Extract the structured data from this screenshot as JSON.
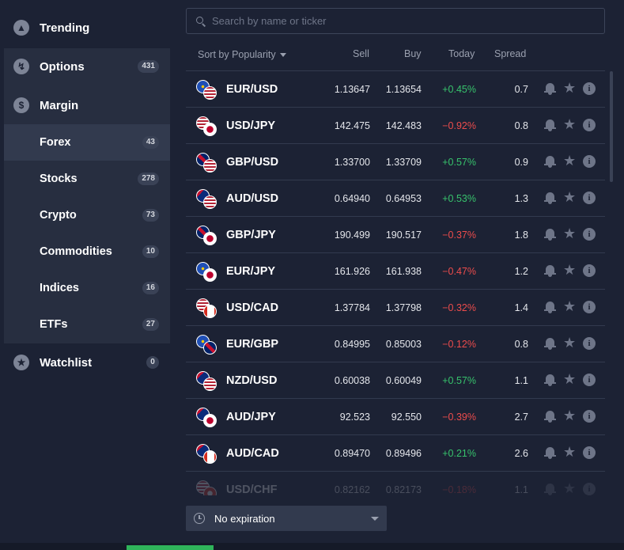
{
  "sidebar": {
    "trending": {
      "label": "Trending"
    },
    "options": {
      "label": "Options",
      "count": "431"
    },
    "margin": {
      "label": "Margin"
    },
    "categories": [
      {
        "label": "Forex",
        "count": "43"
      },
      {
        "label": "Stocks",
        "count": "278"
      },
      {
        "label": "Crypto",
        "count": "73"
      },
      {
        "label": "Commodities",
        "count": "10"
      },
      {
        "label": "Indices",
        "count": "16"
      },
      {
        "label": "ETFs",
        "count": "27"
      }
    ],
    "watchlist": {
      "label": "Watchlist",
      "count": "0"
    }
  },
  "search": {
    "placeholder": "Search by name or ticker"
  },
  "table": {
    "sort_label": "Sort by Popularity",
    "columns": {
      "sell": "Sell",
      "buy": "Buy",
      "today": "Today",
      "spread": "Spread"
    },
    "rows": [
      {
        "pair": "EUR/USD",
        "sell": "1.13647",
        "buy": "1.13654",
        "today": "+0.45%",
        "spread": "0.7"
      },
      {
        "pair": "USD/JPY",
        "sell": "142.475",
        "buy": "142.483",
        "today": "−0.92%",
        "spread": "0.8"
      },
      {
        "pair": "GBP/USD",
        "sell": "1.33700",
        "buy": "1.33709",
        "today": "+0.57%",
        "spread": "0.9"
      },
      {
        "pair": "AUD/USD",
        "sell": "0.64940",
        "buy": "0.64953",
        "today": "+0.53%",
        "spread": "1.3"
      },
      {
        "pair": "GBP/JPY",
        "sell": "190.499",
        "buy": "190.517",
        "today": "−0.37%",
        "spread": "1.8"
      },
      {
        "pair": "EUR/JPY",
        "sell": "161.926",
        "buy": "161.938",
        "today": "−0.47%",
        "spread": "1.2"
      },
      {
        "pair": "USD/CAD",
        "sell": "1.37784",
        "buy": "1.37798",
        "today": "−0.32%",
        "spread": "1.4"
      },
      {
        "pair": "EUR/GBP",
        "sell": "0.84995",
        "buy": "0.85003",
        "today": "−0.12%",
        "spread": "0.8"
      },
      {
        "pair": "NZD/USD",
        "sell": "0.60038",
        "buy": "0.60049",
        "today": "+0.57%",
        "spread": "1.1"
      },
      {
        "pair": "AUD/JPY",
        "sell": "92.523",
        "buy": "92.550",
        "today": "−0.39%",
        "spread": "2.7"
      },
      {
        "pair": "AUD/CAD",
        "sell": "0.89470",
        "buy": "0.89496",
        "today": "+0.21%",
        "spread": "2.6"
      },
      {
        "pair": "USD/CHF",
        "sell": "0.82162",
        "buy": "0.82173",
        "today": "−0.18%",
        "spread": "1.1"
      }
    ]
  },
  "expiration": {
    "label": "No expiration"
  },
  "colors": {
    "positive": "#37c26c",
    "negative": "#ec4c4c",
    "background": "#1c2234"
  }
}
